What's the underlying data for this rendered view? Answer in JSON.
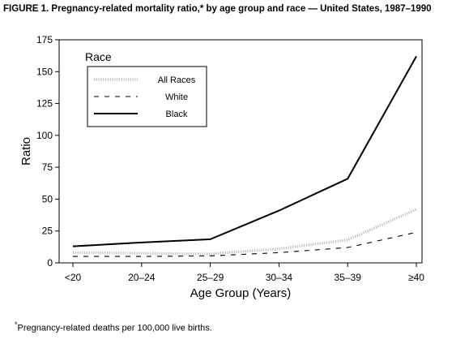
{
  "figure": {
    "title": "FIGURE 1. Pregnancy-related mortality ratio,* by age group and race — United States, 1987–1990",
    "footnote_marker": "*",
    "footnote": "Pregnancy-related deaths per 100,000 live births."
  },
  "chart_data": {
    "type": "line",
    "title": "FIGURE 1. Pregnancy-related mortality ratio,* by age group and race — United States, 1987–1990",
    "xlabel": "Age Group (Years)",
    "ylabel": "Ratio",
    "categories": [
      "<20",
      "20–24",
      "25–29",
      "30–34",
      "35–39",
      "≥40"
    ],
    "ylim": [
      0,
      175
    ],
    "yticks": [
      0,
      25,
      50,
      75,
      100,
      125,
      150,
      175
    ],
    "legend_title": "Race",
    "legend_position": "top-left",
    "grid": false,
    "series": [
      {
        "name": "All Races",
        "style": "dotted",
        "color": "#bbbbbb",
        "values": [
          8,
          7.5,
          7,
          11,
          18,
          42
        ]
      },
      {
        "name": "White",
        "style": "dashed",
        "color": "#000000",
        "values": [
          5,
          5,
          5.5,
          8,
          12,
          24
        ]
      },
      {
        "name": "Black",
        "style": "solid",
        "color": "#000000",
        "values": [
          13,
          16,
          18.5,
          41,
          66,
          162
        ]
      }
    ]
  }
}
